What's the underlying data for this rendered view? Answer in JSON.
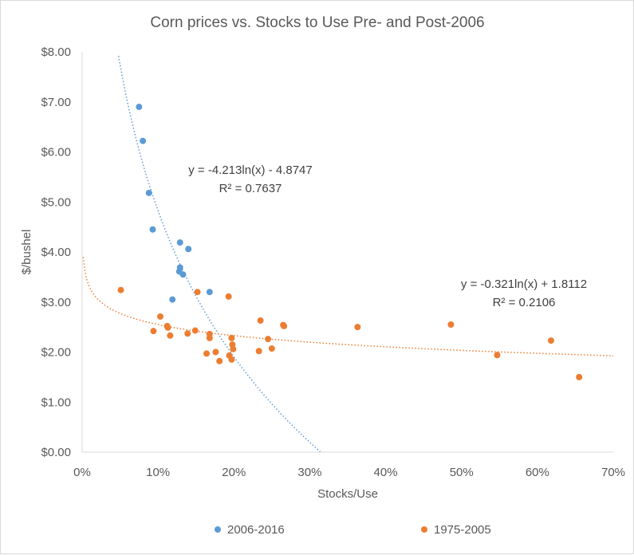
{
  "chart_data": {
    "type": "scatter",
    "title": "Corn prices vs. Stocks to Use Pre- and Post-2006",
    "xlabel": "Stocks/Use",
    "ylabel": "$/bushel",
    "xlim": [
      0,
      0.7
    ],
    "ylim": [
      0,
      8
    ],
    "x_ticks": [
      0,
      0.1,
      0.2,
      0.3,
      0.4,
      0.5,
      0.6,
      0.7
    ],
    "x_tick_labels": [
      "0%",
      "10%",
      "20%",
      "30%",
      "40%",
      "50%",
      "60%",
      "70%"
    ],
    "y_ticks": [
      0,
      1,
      2,
      3,
      4,
      5,
      6,
      7,
      8
    ],
    "y_tick_labels": [
      "$0.00",
      "$1.00",
      "$2.00",
      "$3.00",
      "$4.00",
      "$5.00",
      "$6.00",
      "$7.00",
      "$8.00"
    ],
    "grid": false,
    "legend_position": "bottom",
    "series": [
      {
        "name": "2006-2016",
        "color": "#5b9bd5",
        "points": [
          [
            0.075,
            6.9
          ],
          [
            0.08,
            6.22
          ],
          [
            0.088,
            5.18
          ],
          [
            0.093,
            4.45
          ],
          [
            0.129,
            4.19
          ],
          [
            0.14,
            4.06
          ],
          [
            0.129,
            3.69
          ],
          [
            0.128,
            3.61
          ],
          [
            0.133,
            3.55
          ],
          [
            0.119,
            3.05
          ],
          [
            0.168,
            3.2
          ]
        ],
        "trendline": {
          "type": "log",
          "a": -4.213,
          "b": -4.8747,
          "x_range": [
            0.048,
            0.32
          ],
          "color": "#5b9bd5",
          "equation_line1": "y = -4.213ln(x) - 4.8747",
          "equation_line2": "R² = 0.7637"
        }
      },
      {
        "name": "1975-2005",
        "color": "#ed7d31",
        "points": [
          [
            0.051,
            3.24
          ],
          [
            0.103,
            2.71
          ],
          [
            0.094,
            2.42
          ],
          [
            0.112,
            2.52
          ],
          [
            0.113,
            2.49
          ],
          [
            0.116,
            2.33
          ],
          [
            0.139,
            2.37
          ],
          [
            0.149,
            2.43
          ],
          [
            0.152,
            3.2
          ],
          [
            0.164,
            1.97
          ],
          [
            0.168,
            2.36
          ],
          [
            0.168,
            2.28
          ],
          [
            0.176,
            2.0
          ],
          [
            0.181,
            1.82
          ],
          [
            0.193,
            3.11
          ],
          [
            0.194,
            1.93
          ],
          [
            0.197,
            1.85
          ],
          [
            0.197,
            2.28
          ],
          [
            0.198,
            2.15
          ],
          [
            0.199,
            2.06
          ],
          [
            0.233,
            2.02
          ],
          [
            0.235,
            2.63
          ],
          [
            0.245,
            2.26
          ],
          [
            0.25,
            2.07
          ],
          [
            0.265,
            2.54
          ],
          [
            0.266,
            2.52
          ],
          [
            0.363,
            2.5
          ],
          [
            0.486,
            2.55
          ],
          [
            0.547,
            1.94
          ],
          [
            0.618,
            2.23
          ],
          [
            0.655,
            1.5
          ]
        ],
        "trendline": {
          "type": "log",
          "a": -0.321,
          "b": 1.8112,
          "x_range": [
            0.0015,
            0.7
          ],
          "color": "#ed7d31",
          "equation_line1": "y = -0.321ln(x) + 1.8112",
          "equation_line2": "R² = 0.2106"
        }
      }
    ]
  }
}
